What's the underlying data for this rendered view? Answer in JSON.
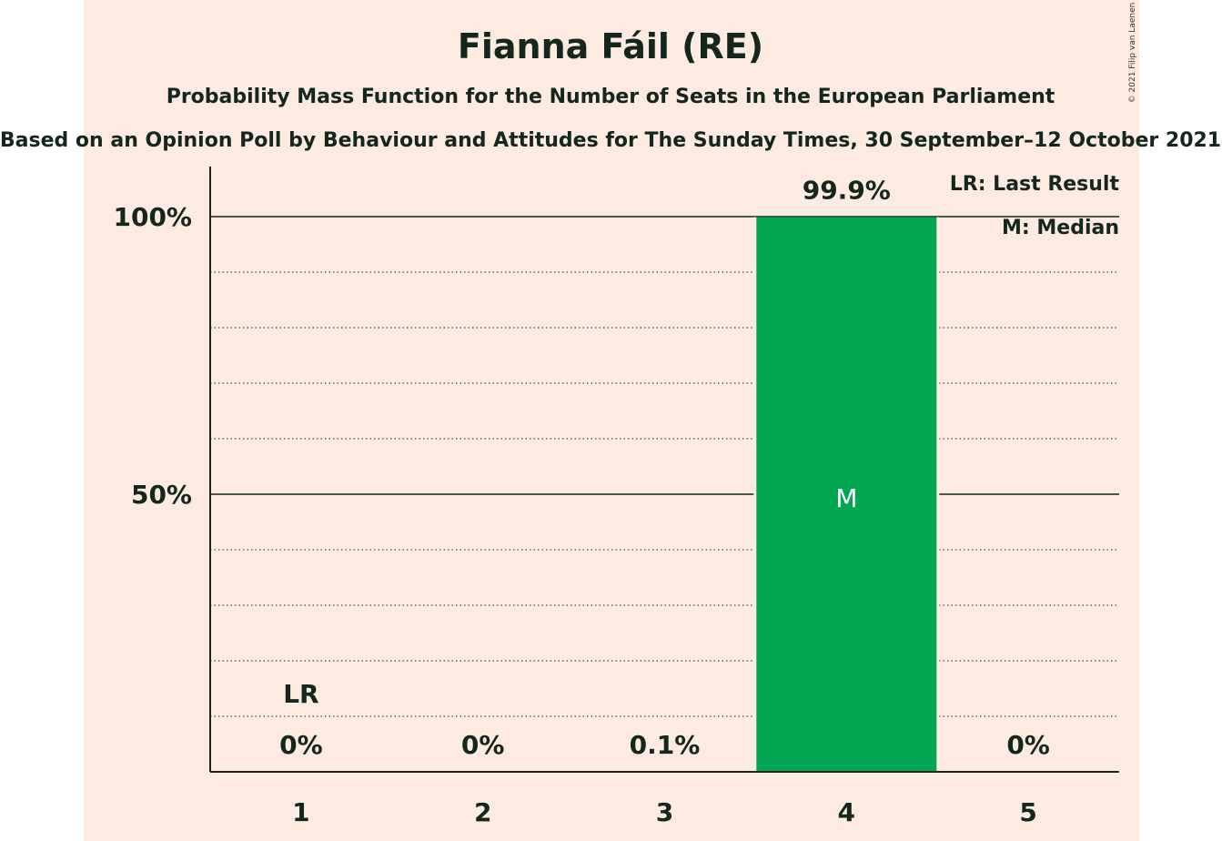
{
  "chart_data": {
    "type": "bar",
    "title": "Fianna Fáil (RE)",
    "subtitle": "Probability Mass Function for the Number of Seats in the European Parliament",
    "subtitle2": "Based on an Opinion Poll by Behaviour and Attitudes for The Sunday Times, 30 September–12 October 2021",
    "categories": [
      "1",
      "2",
      "3",
      "4",
      "5"
    ],
    "values": [
      0,
      0,
      0.1,
      99.9,
      0
    ],
    "value_labels": [
      "0%",
      "0%",
      "0.1%",
      "99.9%",
      "0%"
    ],
    "ylim": [
      0,
      100
    ],
    "yticks": [
      {
        "value": 50,
        "label": "50%"
      },
      {
        "value": 100,
        "label": "100%"
      }
    ],
    "minor_grid_step": 10,
    "last_result_category": "1",
    "last_result_marker": "LR",
    "median_category": "4",
    "median_marker": "M",
    "legend": [
      "LR: Last Result",
      "M: Median"
    ],
    "legend_position": "top-right",
    "bar_color": "#00a651",
    "background_color": "#fdeae0",
    "text_color": "#13271c"
  },
  "copyright": "© 2021 Filip van Laenen"
}
